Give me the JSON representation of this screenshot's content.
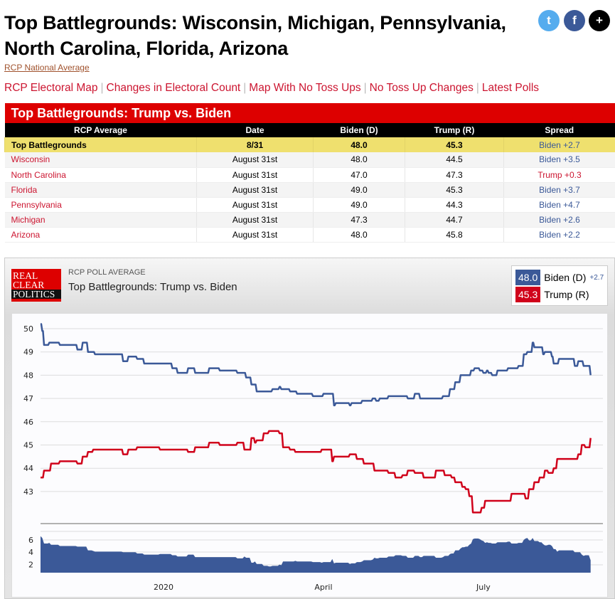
{
  "header": {
    "title": "Top Battlegrounds: Wisconsin, Michigan, Pennsylvania, North Carolina, Florida, Arizona",
    "national_link": "RCP National Average",
    "nav": [
      "RCP Electoral Map",
      "Changes in Electoral Count",
      "Map With No Toss Ups",
      "No Toss Up Changes",
      "Latest Polls"
    ],
    "nav_separator": "|",
    "social": [
      {
        "icon": "twitter-icon",
        "glyph": "t",
        "color": "#55acee"
      },
      {
        "icon": "facebook-icon",
        "glyph": "f",
        "color": "#3b5998"
      },
      {
        "icon": "plus-icon",
        "glyph": "+",
        "color": "#000000"
      }
    ]
  },
  "table": {
    "title": "Top Battlegrounds: Trump vs. Biden",
    "columns": [
      "RCP Average",
      "Date",
      "Biden (D)",
      "Trump (R)",
      "Spread"
    ],
    "average": {
      "name": "Top Battlegrounds",
      "date": "8/31",
      "biden": "48.0",
      "trump": "45.3",
      "spread": "Biden +2.7"
    },
    "rows": [
      {
        "state": "Wisconsin",
        "date": "August 31st",
        "biden": "48.0",
        "trump": "44.5",
        "spread": "Biden +3.5",
        "leader": "D"
      },
      {
        "state": "North Carolina",
        "date": "August 31st",
        "biden": "47.0",
        "trump": "47.3",
        "spread": "Trump +0.3",
        "leader": "R"
      },
      {
        "state": "Florida",
        "date": "August 31st",
        "biden": "49.0",
        "trump": "45.3",
        "spread": "Biden +3.7",
        "leader": "D"
      },
      {
        "state": "Pennsylvania",
        "date": "August 31st",
        "biden": "49.0",
        "trump": "44.3",
        "spread": "Biden +4.7",
        "leader": "D"
      },
      {
        "state": "Michigan",
        "date": "August 31st",
        "biden": "47.3",
        "trump": "44.7",
        "spread": "Biden +2.6",
        "leader": "D"
      },
      {
        "state": "Arizona",
        "date": "August 31st",
        "biden": "48.0",
        "trump": "45.8",
        "spread": "Biden +2.2",
        "leader": "D"
      }
    ]
  },
  "chart_panel": {
    "logo": [
      "REAL",
      "CLEAR",
      "POLITICS"
    ],
    "kicker": "RCP POLL AVERAGE",
    "title": "Top Battlegrounds: Trump vs. Biden",
    "legend": [
      {
        "value": "48.0",
        "label": "Biden (D)",
        "extra": "+2.7",
        "color": "#3b5998"
      },
      {
        "value": "45.3",
        "label": "Trump (R)",
        "extra": "",
        "color": "#d0021b"
      }
    ]
  },
  "chart_data": {
    "type": "line",
    "grid": true,
    "y_ticks": [
      43,
      44,
      45,
      46,
      47,
      48,
      49,
      50
    ],
    "ylim": [
      42,
      50.3
    ],
    "x_ticks": [
      {
        "label": "2020",
        "date": "2020-01-01"
      },
      {
        "label": "April",
        "date": "2020-04-01"
      },
      {
        "label": "July",
        "date": "2020-07-01"
      }
    ],
    "xlim": [
      "2019-10-23",
      "2020-09-07"
    ],
    "series": [
      {
        "name": "Biden (D)",
        "color": "#3b5998",
        "points": [
          [
            "2019-10-23",
            50.2
          ],
          [
            "2019-10-24",
            49.9
          ],
          [
            "2019-10-25",
            49.3
          ],
          [
            "2019-10-28",
            49.4
          ],
          [
            "2019-11-03",
            49.3
          ],
          [
            "2019-11-13",
            49.1
          ],
          [
            "2019-11-16",
            49.4
          ],
          [
            "2019-11-19",
            49.0
          ],
          [
            "2019-11-23",
            48.9
          ],
          [
            "2019-12-09",
            48.6
          ],
          [
            "2019-12-12",
            48.8
          ],
          [
            "2019-12-17",
            48.7
          ],
          [
            "2019-12-21",
            48.5
          ],
          [
            "2020-01-06",
            48.3
          ],
          [
            "2020-01-09",
            48.1
          ],
          [
            "2020-01-15",
            48.3
          ],
          [
            "2020-01-19",
            48.1
          ],
          [
            "2020-01-27",
            48.3
          ],
          [
            "2020-02-02",
            48.2
          ],
          [
            "2020-02-12",
            48.1
          ],
          [
            "2020-02-17",
            47.9
          ],
          [
            "2020-02-20",
            47.6
          ],
          [
            "2020-02-23",
            47.3
          ],
          [
            "2020-03-03",
            47.4
          ],
          [
            "2020-03-07",
            47.5
          ],
          [
            "2020-03-08",
            47.4
          ],
          [
            "2020-03-13",
            47.3
          ],
          [
            "2020-03-17",
            47.2
          ],
          [
            "2020-03-26",
            47.1
          ],
          [
            "2020-04-01",
            47.2
          ],
          [
            "2020-04-07",
            46.7
          ],
          [
            "2020-04-08",
            46.8
          ],
          [
            "2020-04-16",
            46.7
          ],
          [
            "2020-04-17",
            46.8
          ],
          [
            "2020-04-23",
            46.9
          ],
          [
            "2020-04-29",
            47.0
          ],
          [
            "2020-05-01",
            46.9
          ],
          [
            "2020-05-03",
            47.0
          ],
          [
            "2020-05-08",
            47.1
          ],
          [
            "2020-05-19",
            47.0
          ],
          [
            "2020-05-23",
            47.2
          ],
          [
            "2020-05-26",
            47.0
          ],
          [
            "2020-06-08",
            47.1
          ],
          [
            "2020-06-12",
            47.4
          ],
          [
            "2020-06-15",
            47.7
          ],
          [
            "2020-06-18",
            48.0
          ],
          [
            "2020-06-24",
            48.2
          ],
          [
            "2020-06-26",
            48.3
          ],
          [
            "2020-06-29",
            48.2
          ],
          [
            "2020-07-01",
            48.1
          ],
          [
            "2020-07-03",
            48.2
          ],
          [
            "2020-07-04",
            48.1
          ],
          [
            "2020-07-06",
            48.0
          ],
          [
            "2020-07-09",
            48.2
          ],
          [
            "2020-07-15",
            48.3
          ],
          [
            "2020-07-21",
            48.4
          ],
          [
            "2020-07-24",
            48.9
          ],
          [
            "2020-07-26",
            49.0
          ],
          [
            "2020-07-29",
            49.4
          ],
          [
            "2020-07-30",
            49.2
          ],
          [
            "2020-08-04",
            48.9
          ],
          [
            "2020-08-05",
            49.0
          ],
          [
            "2020-08-09",
            48.8
          ],
          [
            "2020-08-10",
            48.5
          ],
          [
            "2020-08-13",
            48.7
          ],
          [
            "2020-08-22",
            48.4
          ],
          [
            "2020-08-24",
            48.6
          ],
          [
            "2020-08-27",
            48.4
          ],
          [
            "2020-08-31",
            48.0
          ]
        ]
      },
      {
        "name": "Trump (R)",
        "color": "#d0021b",
        "points": [
          [
            "2019-10-23",
            43.6
          ],
          [
            "2019-10-25",
            43.9
          ],
          [
            "2019-10-29",
            44.2
          ],
          [
            "2019-11-03",
            44.3
          ],
          [
            "2019-11-13",
            44.2
          ],
          [
            "2019-11-16",
            44.5
          ],
          [
            "2019-11-19",
            44.7
          ],
          [
            "2019-11-22",
            44.8
          ],
          [
            "2019-12-09",
            44.6
          ],
          [
            "2019-12-12",
            44.8
          ],
          [
            "2019-12-17",
            44.9
          ],
          [
            "2019-12-30",
            44.8
          ],
          [
            "2020-01-15",
            44.7
          ],
          [
            "2020-01-19",
            44.9
          ],
          [
            "2020-01-27",
            45.1
          ],
          [
            "2020-02-02",
            45.0
          ],
          [
            "2020-02-12",
            45.1
          ],
          [
            "2020-02-16",
            44.8
          ],
          [
            "2020-02-20",
            45.3
          ],
          [
            "2020-02-22",
            45.1
          ],
          [
            "2020-02-23",
            45.2
          ],
          [
            "2020-02-27",
            45.5
          ],
          [
            "2020-03-01",
            45.6
          ],
          [
            "2020-03-07",
            45.5
          ],
          [
            "2020-03-09",
            44.9
          ],
          [
            "2020-03-13",
            44.8
          ],
          [
            "2020-03-16",
            44.7
          ],
          [
            "2020-03-31",
            44.8
          ],
          [
            "2020-04-06",
            44.3
          ],
          [
            "2020-04-07",
            44.5
          ],
          [
            "2020-04-16",
            44.6
          ],
          [
            "2020-04-20",
            44.4
          ],
          [
            "2020-04-24",
            44.2
          ],
          [
            "2020-04-30",
            43.9
          ],
          [
            "2020-05-08",
            43.8
          ],
          [
            "2020-05-12",
            43.6
          ],
          [
            "2020-05-16",
            43.7
          ],
          [
            "2020-05-19",
            43.9
          ],
          [
            "2020-05-23",
            43.8
          ],
          [
            "2020-05-28",
            43.6
          ],
          [
            "2020-06-04",
            43.9
          ],
          [
            "2020-06-09",
            43.7
          ],
          [
            "2020-06-13",
            43.6
          ],
          [
            "2020-06-15",
            43.4
          ],
          [
            "2020-06-19",
            43.2
          ],
          [
            "2020-06-21",
            43.1
          ],
          [
            "2020-06-23",
            42.8
          ],
          [
            "2020-06-25",
            42.1
          ],
          [
            "2020-06-30",
            42.3
          ],
          [
            "2020-07-02",
            42.6
          ],
          [
            "2020-07-17",
            42.9
          ],
          [
            "2020-07-25",
            42.7
          ],
          [
            "2020-07-27",
            43.1
          ],
          [
            "2020-07-30",
            43.4
          ],
          [
            "2020-08-02",
            43.6
          ],
          [
            "2020-08-05",
            43.9
          ],
          [
            "2020-08-07",
            43.8
          ],
          [
            "2020-08-10",
            44.0
          ],
          [
            "2020-08-12",
            44.4
          ],
          [
            "2020-08-24",
            44.6
          ],
          [
            "2020-08-26",
            45.0
          ],
          [
            "2020-08-28",
            44.9
          ],
          [
            "2020-08-31",
            45.3
          ]
        ]
      }
    ],
    "spread_panel": {
      "type": "area",
      "color": "#3b5998",
      "y_ticks": [
        2,
        4,
        6
      ],
      "ylim": [
        0.7,
        7
      ]
    }
  }
}
